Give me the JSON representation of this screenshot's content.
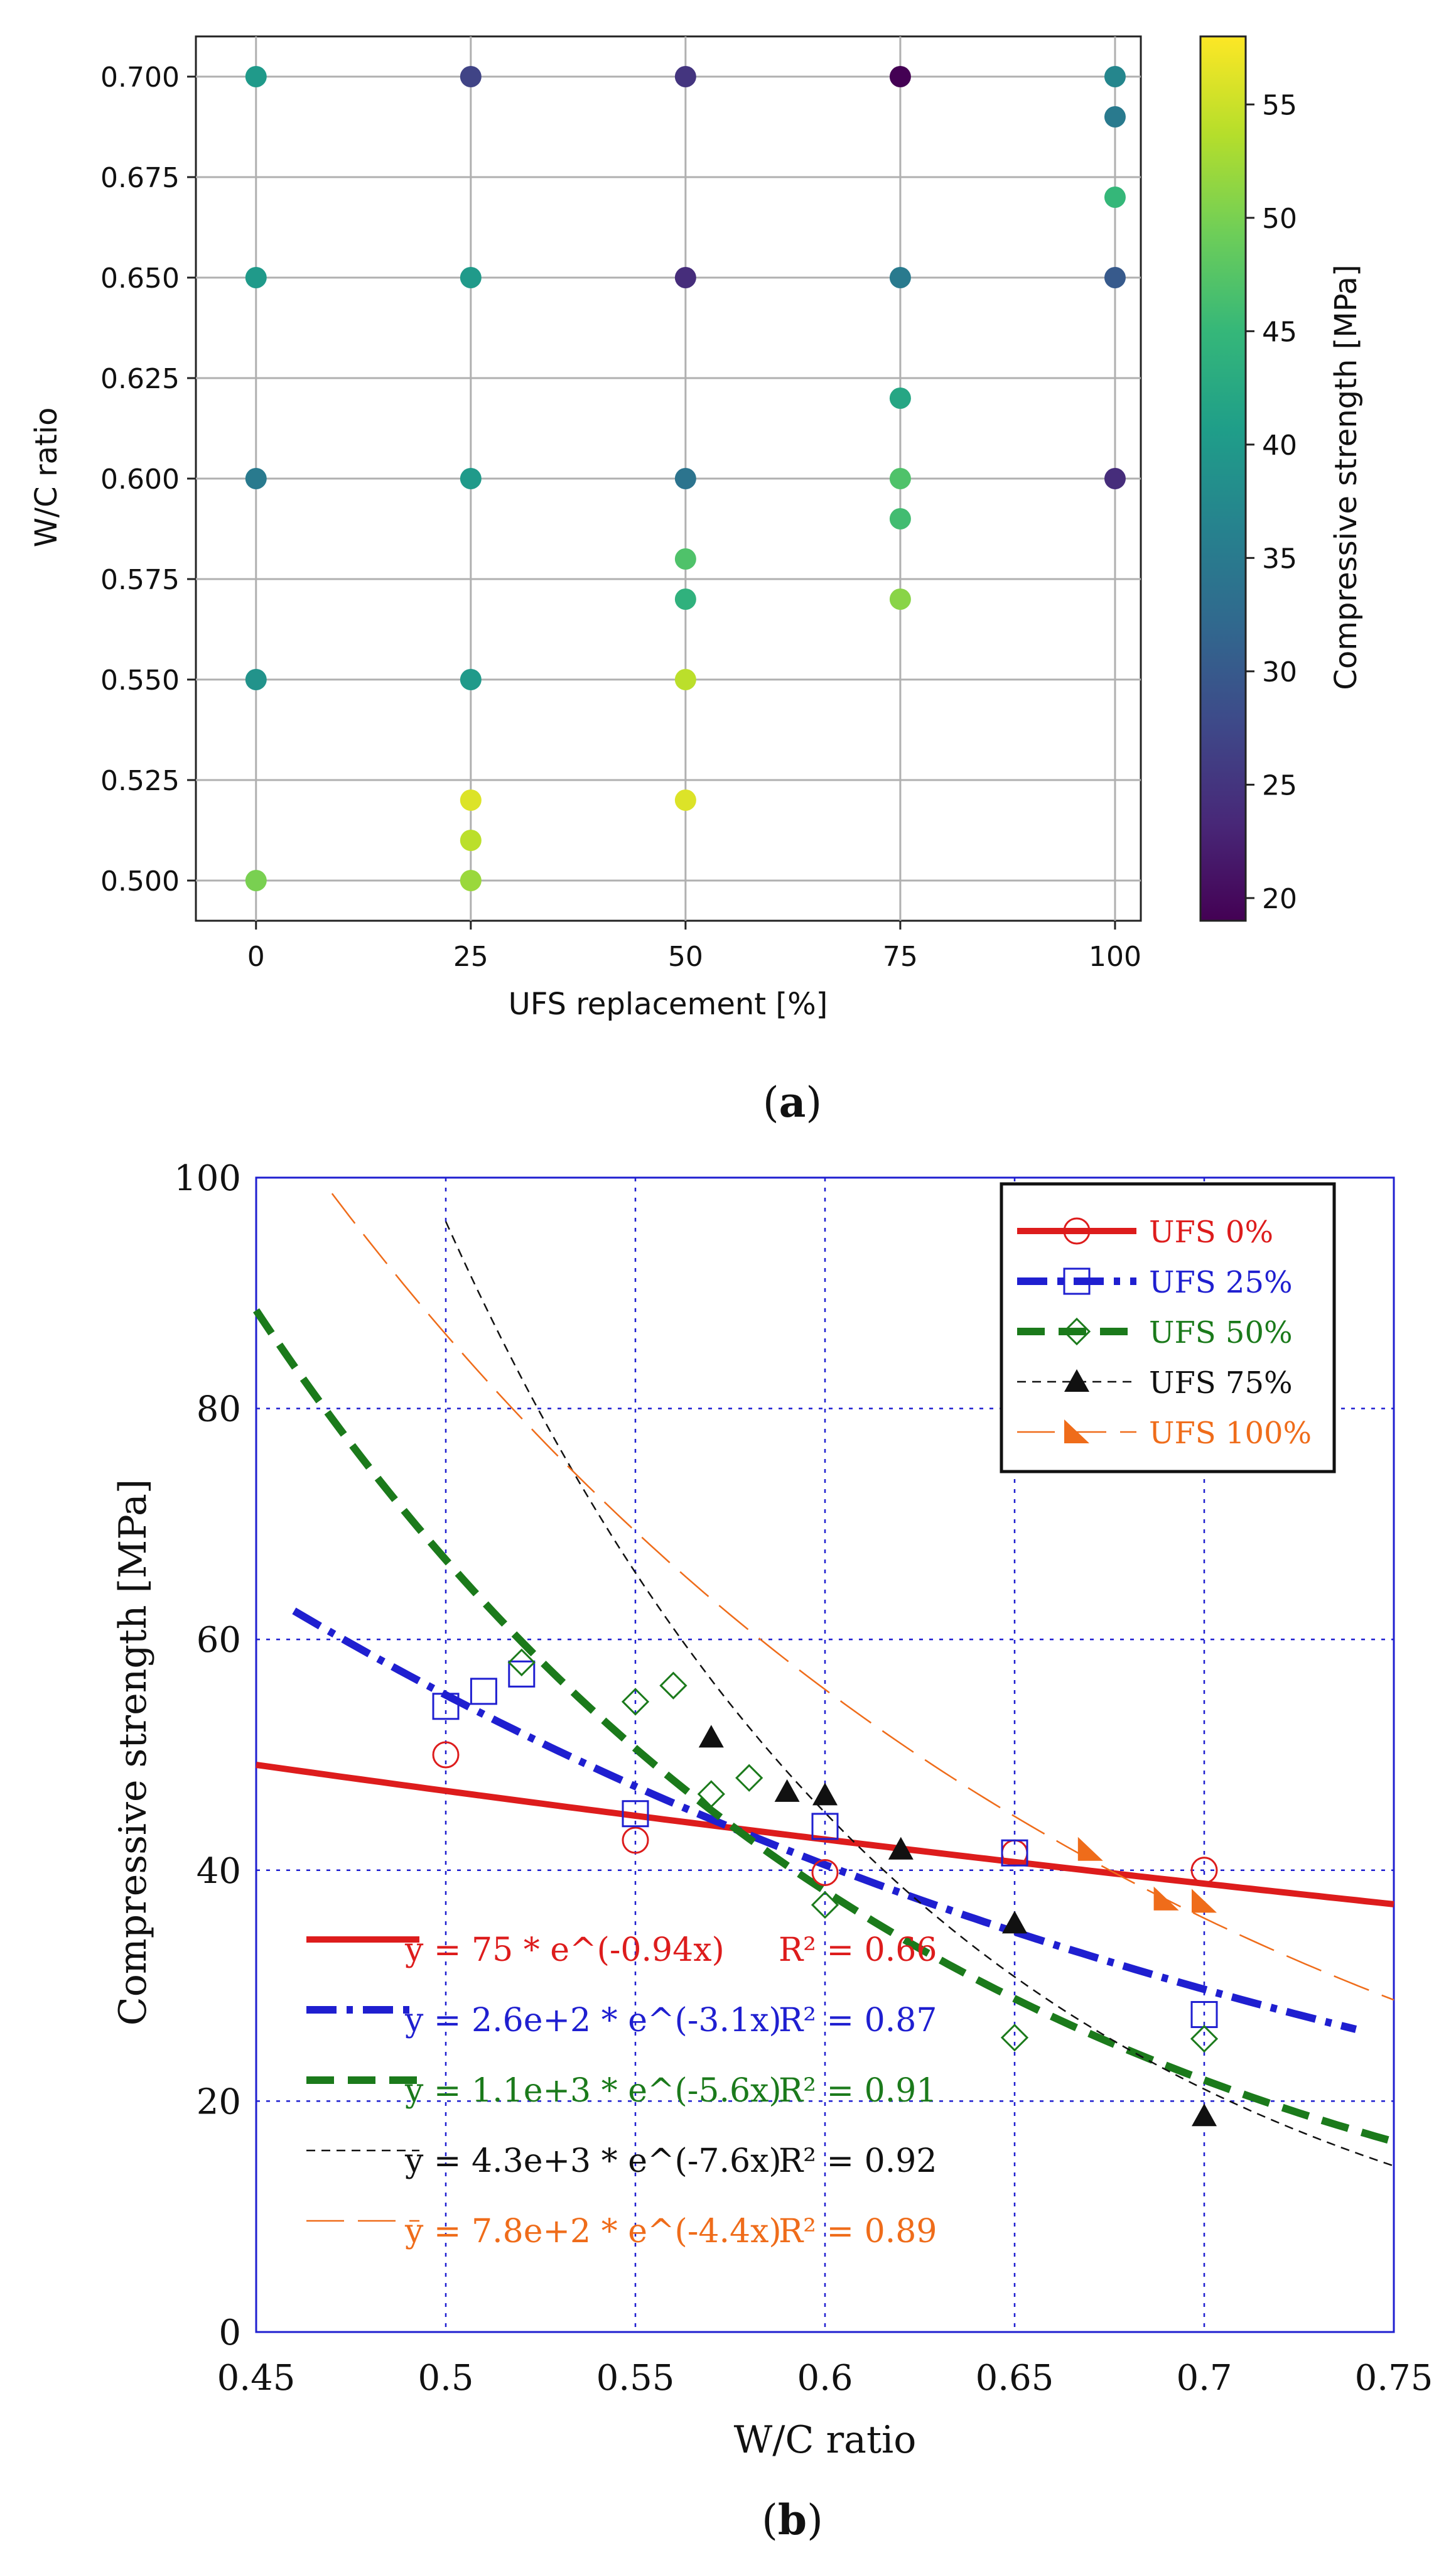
{
  "chart_data": [
    {
      "type": "scatter",
      "panel_label": "a",
      "xlabel": "UFS replacement [%]",
      "ylabel": "W/C ratio",
      "xlim": [
        -7,
        103
      ],
      "ylim": [
        0.49,
        0.71
      ],
      "x_ticks": [
        0,
        25,
        50,
        75,
        100
      ],
      "x_tick_labels": [
        "0",
        "25",
        "50",
        "75",
        "100"
      ],
      "y_ticks": [
        0.5,
        0.525,
        0.55,
        0.575,
        0.6,
        0.625,
        0.65,
        0.675,
        0.7
      ],
      "y_tick_labels": [
        "0.500",
        "0.525",
        "0.550",
        "0.575",
        "0.600",
        "0.625",
        "0.650",
        "0.675",
        "0.700"
      ],
      "grid": true,
      "colorbar": {
        "label": "Compressive strength [MPa]",
        "min": 19,
        "max": 58,
        "ticks": [
          20,
          25,
          30,
          35,
          40,
          45,
          50,
          55
        ],
        "tick_labels": [
          "20",
          "25",
          "30",
          "35",
          "40",
          "45",
          "50",
          "55"
        ],
        "colormap": [
          "#440154",
          "#482878",
          "#3e4989",
          "#31688e",
          "#26828e",
          "#1f9e89",
          "#35b779",
          "#6ece58",
          "#b5de2b",
          "#fde725"
        ]
      },
      "points": [
        {
          "x": 0,
          "y": 0.7,
          "v": 40
        },
        {
          "x": 0,
          "y": 0.65,
          "v": 40
        },
        {
          "x": 0,
          "y": 0.6,
          "v": 35
        },
        {
          "x": 0,
          "y": 0.55,
          "v": 39
        },
        {
          "x": 0,
          "y": 0.5,
          "v": 50
        },
        {
          "x": 25,
          "y": 0.7,
          "v": 27
        },
        {
          "x": 25,
          "y": 0.65,
          "v": 40
        },
        {
          "x": 25,
          "y": 0.6,
          "v": 40
        },
        {
          "x": 25,
          "y": 0.55,
          "v": 40
        },
        {
          "x": 25,
          "y": 0.52,
          "v": 56
        },
        {
          "x": 25,
          "y": 0.51,
          "v": 54
        },
        {
          "x": 25,
          "y": 0.5,
          "v": 52
        },
        {
          "x": 50,
          "y": 0.7,
          "v": 25
        },
        {
          "x": 50,
          "y": 0.65,
          "v": 24
        },
        {
          "x": 50,
          "y": 0.6,
          "v": 34
        },
        {
          "x": 50,
          "y": 0.58,
          "v": 47
        },
        {
          "x": 50,
          "y": 0.57,
          "v": 44
        },
        {
          "x": 50,
          "y": 0.55,
          "v": 54
        },
        {
          "x": 50,
          "y": 0.52,
          "v": 56
        },
        {
          "x": 75,
          "y": 0.7,
          "v": 19
        },
        {
          "x": 75,
          "y": 0.65,
          "v": 35
        },
        {
          "x": 75,
          "y": 0.62,
          "v": 42
        },
        {
          "x": 75,
          "y": 0.6,
          "v": 47
        },
        {
          "x": 75,
          "y": 0.59,
          "v": 46
        },
        {
          "x": 75,
          "y": 0.57,
          "v": 51
        },
        {
          "x": 100,
          "y": 0.7,
          "v": 37
        },
        {
          "x": 100,
          "y": 0.69,
          "v": 35
        },
        {
          "x": 100,
          "y": 0.67,
          "v": 45
        },
        {
          "x": 100,
          "y": 0.65,
          "v": 30
        },
        {
          "x": 100,
          "y": 0.6,
          "v": 24
        }
      ]
    },
    {
      "type": "scatter",
      "panel_label": "b",
      "xlabel": "W/C ratio",
      "ylabel": "Compressive strength [MPa]",
      "xlim": [
        0.45,
        0.75
      ],
      "ylim": [
        0,
        100
      ],
      "x_ticks": [
        0.45,
        0.5,
        0.55,
        0.6,
        0.65,
        0.7,
        0.75
      ],
      "x_tick_labels": [
        "0.45",
        "0.5",
        "0.55",
        "0.6",
        "0.65",
        "0.7",
        "0.75"
      ],
      "y_ticks": [
        0,
        20,
        40,
        60,
        80,
        100
      ],
      "y_tick_labels": [
        "0",
        "20",
        "40",
        "60",
        "80",
        "100"
      ],
      "grid": true,
      "legend_position": "top-right",
      "series": [
        {
          "name": "UFS 0%",
          "color": "#dd1c1c",
          "marker": "circle",
          "line": "solid",
          "points": [
            [
              0.5,
              50.0
            ],
            [
              0.55,
              42.6
            ],
            [
              0.6,
              39.8
            ],
            [
              0.65,
              41.5
            ],
            [
              0.7,
              40.0
            ]
          ],
          "fit": {
            "a": 75,
            "b": 0.94,
            "range": [
              0.45,
              0.75
            ],
            "label": "y = 75 * e^(-0.94x)",
            "r2_label": "R² = 0.66"
          }
        },
        {
          "name": "UFS 25%",
          "color": "#1f1fd0",
          "marker": "square",
          "line": "dashdot",
          "points": [
            [
              0.5,
              54.2
            ],
            [
              0.51,
              55.5
            ],
            [
              0.52,
              57.0
            ],
            [
              0.55,
              44.9
            ],
            [
              0.6,
              43.8
            ],
            [
              0.65,
              41.5
            ],
            [
              0.7,
              27.5
            ]
          ],
          "fit": {
            "a": 260,
            "b": 3.1,
            "range": [
              0.46,
              0.74
            ],
            "label": "y = 2.6e+2 * e^(-3.1x)",
            "r2_label": "R² = 0.87"
          }
        },
        {
          "name": "UFS 50%",
          "color": "#1b7a1b",
          "marker": "diamond",
          "line": "dashed",
          "points": [
            [
              0.52,
              58.0
            ],
            [
              0.55,
              54.6
            ],
            [
              0.56,
              56.0
            ],
            [
              0.57,
              46.6
            ],
            [
              0.58,
              48.0
            ],
            [
              0.6,
              37.0
            ],
            [
              0.65,
              25.5
            ],
            [
              0.7,
              25.4
            ]
          ],
          "fit": {
            "a": 1100,
            "b": 5.6,
            "range": [
              0.45,
              0.75
            ],
            "label": "y = 1.1e+3 * e^(-5.6x)",
            "r2_label": "R² = 0.91"
          }
        },
        {
          "name": "UFS 75%",
          "color": "#111111",
          "marker": "triangle",
          "line": "dashed-thin",
          "points": [
            [
              0.57,
              51.5
            ],
            [
              0.59,
              46.8
            ],
            [
              0.6,
              46.5
            ],
            [
              0.62,
              41.8
            ],
            [
              0.65,
              35.4
            ],
            [
              0.7,
              18.7
            ]
          ],
          "fit": {
            "a": 4300,
            "b": 7.6,
            "range": [
              0.5,
              0.75
            ],
            "label": "y = 4.3e+3 * e^(-7.6x)",
            "r2_label": "R² = 0.92"
          }
        },
        {
          "name": "UFS 100%",
          "color": "#ef6c1a",
          "marker": "triangle-left",
          "line": "longdash-thin",
          "points": [
            [
              0.67,
              41.8
            ],
            [
              0.69,
              37.5
            ],
            [
              0.7,
              37.3
            ]
          ],
          "fit": {
            "a": 780,
            "b": 4.4,
            "range": [
              0.47,
              0.75
            ],
            "label": "y = 7.8e+2 * e^(-4.4x)",
            "r2_label": "R² = 0.89"
          }
        }
      ]
    }
  ]
}
